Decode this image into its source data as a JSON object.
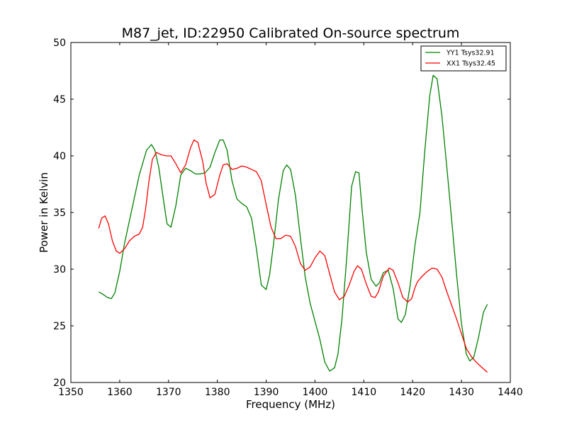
{
  "chart_data": {
    "type": "line",
    "title": "M87_jet, ID:22950 Calibrated On-source spectrum",
    "xlabel": "Frequency (MHz)",
    "ylabel": "Power in Kelvin",
    "xlim": [
      1350,
      1440
    ],
    "ylim": [
      20,
      50
    ],
    "xticks": [
      1350,
      1360,
      1370,
      1380,
      1390,
      1400,
      1410,
      1420,
      1430,
      1440
    ],
    "yticks": [
      20,
      25,
      30,
      35,
      40,
      45,
      50
    ],
    "grid": false,
    "legend_position": "top-right",
    "series": [
      {
        "name": "YY1 Tsys32.91",
        "color": "#008000",
        "x": [
          1355.7,
          1356.5,
          1357.5,
          1358.3,
          1359.0,
          1360.0,
          1361.0,
          1362.5,
          1364.0,
          1365.5,
          1366.5,
          1367.2,
          1368.0,
          1369.0,
          1369.7,
          1370.5,
          1371.5,
          1372.5,
          1373.5,
          1374.5,
          1375.5,
          1376.5,
          1377.5,
          1378.5,
          1379.5,
          1380.5,
          1381.2,
          1382.0,
          1383.0,
          1384.0,
          1385.0,
          1386.0,
          1387.0,
          1388.0,
          1389.0,
          1390.0,
          1390.7,
          1391.5,
          1392.5,
          1393.5,
          1394.2,
          1395.0,
          1396.0,
          1397.0,
          1398.0,
          1399.0,
          1400.0,
          1401.0,
          1402.0,
          1403.0,
          1404.0,
          1404.7,
          1405.5,
          1406.5,
          1407.5,
          1408.3,
          1409.0,
          1409.7,
          1410.5,
          1411.5,
          1412.5,
          1413.2,
          1414.0,
          1415.0,
          1416.0,
          1417.0,
          1417.7,
          1418.5,
          1419.5,
          1420.5,
          1421.5,
          1422.5,
          1423.5,
          1424.2,
          1425.0,
          1426.0,
          1427.0,
          1428.0,
          1429.0,
          1430.0,
          1431.0,
          1431.7,
          1432.5,
          1433.5,
          1434.5,
          1435.3
        ],
        "y": [
          28.0,
          27.8,
          27.5,
          27.4,
          27.9,
          29.8,
          32.3,
          35.3,
          38.3,
          40.5,
          41.0,
          40.5,
          39.0,
          36.0,
          34.0,
          33.7,
          35.6,
          38.3,
          38.9,
          38.7,
          38.4,
          38.4,
          38.5,
          39.0,
          40.3,
          41.4,
          41.4,
          40.5,
          37.8,
          36.2,
          35.8,
          35.5,
          34.5,
          31.8,
          28.6,
          28.2,
          29.5,
          32.2,
          36.1,
          38.7,
          39.2,
          38.8,
          36.5,
          32.8,
          29.3,
          27.0,
          25.4,
          23.8,
          21.8,
          21.0,
          21.3,
          22.5,
          25.5,
          31.0,
          37.3,
          38.6,
          38.5,
          35.0,
          31.5,
          29.1,
          28.5,
          28.8,
          29.7,
          29.9,
          28.3,
          25.6,
          25.3,
          26.0,
          28.6,
          32.2,
          35.0,
          40.5,
          45.3,
          47.1,
          46.8,
          43.5,
          39.0,
          34.3,
          29.5,
          25.2,
          22.5,
          21.9,
          22.2,
          24.0,
          26.2,
          26.9
        ]
      },
      {
        "name": "XX1 Tsys32.45",
        "color": "#ff0000",
        "x": [
          1355.7,
          1356.3,
          1357.0,
          1357.7,
          1358.5,
          1359.3,
          1360.0,
          1361.0,
          1362.0,
          1363.0,
          1364.0,
          1364.7,
          1365.3,
          1366.0,
          1366.7,
          1367.5,
          1368.5,
          1369.5,
          1370.5,
          1371.5,
          1372.5,
          1373.5,
          1374.5,
          1375.2,
          1376.0,
          1377.0,
          1377.7,
          1378.5,
          1379.5,
          1380.5,
          1381.2,
          1382.0,
          1383.0,
          1384.0,
          1385.0,
          1386.0,
          1387.0,
          1388.0,
          1389.0,
          1390.0,
          1391.0,
          1392.0,
          1393.0,
          1394.0,
          1395.0,
          1396.0,
          1397.0,
          1398.0,
          1399.0,
          1400.0,
          1401.0,
          1402.0,
          1403.0,
          1404.0,
          1405.0,
          1406.0,
          1407.0,
          1408.0,
          1408.7,
          1409.5,
          1410.5,
          1411.5,
          1412.3,
          1413.0,
          1414.0,
          1415.2,
          1416.0,
          1417.0,
          1418.0,
          1419.0,
          1419.8,
          1420.5,
          1421.0,
          1422.0,
          1423.0,
          1424.0,
          1425.0,
          1426.0,
          1427.0,
          1428.0,
          1429.0,
          1430.0,
          1431.0,
          1432.0,
          1433.0,
          1434.0,
          1435.3
        ],
        "y": [
          33.6,
          34.5,
          34.7,
          34.0,
          32.5,
          31.6,
          31.4,
          31.8,
          32.5,
          32.9,
          33.1,
          33.7,
          35.3,
          37.8,
          39.7,
          40.3,
          40.1,
          40.0,
          40.0,
          39.3,
          38.5,
          39.2,
          40.7,
          41.4,
          41.2,
          39.5,
          37.6,
          36.3,
          36.6,
          38.3,
          39.2,
          39.3,
          38.8,
          38.9,
          39.1,
          39.0,
          38.8,
          38.6,
          37.8,
          35.7,
          33.7,
          32.7,
          32.7,
          33.0,
          32.9,
          32.0,
          30.5,
          29.9,
          30.2,
          31.0,
          31.6,
          31.2,
          29.6,
          28.0,
          27.3,
          27.6,
          28.6,
          29.8,
          30.3,
          30.0,
          28.7,
          27.6,
          27.5,
          28.0,
          29.4,
          30.1,
          29.9,
          28.8,
          27.5,
          27.1,
          27.4,
          28.4,
          28.9,
          29.4,
          29.8,
          30.1,
          30.0,
          29.3,
          28.0,
          26.8,
          25.6,
          24.3,
          23.0,
          22.3,
          21.8,
          21.4,
          20.9
        ]
      }
    ]
  }
}
